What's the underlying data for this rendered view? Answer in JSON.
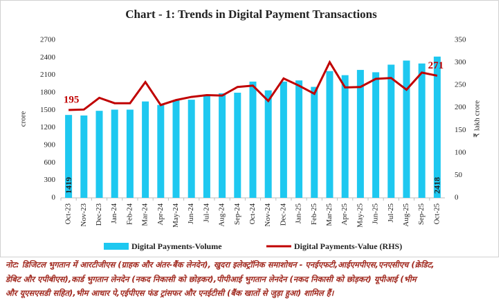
{
  "chart_data": {
    "type": "bar",
    "title": "Chart - 1: Trends in Digital Payment Transactions",
    "y_label": "crore",
    "y2_label": "₹ lakh crore",
    "categories": [
      "Oct-23",
      "Nov-23",
      "Dec-23",
      "Jan-24",
      "Feb-24",
      "Mar-24",
      "Apr-24",
      "May-24",
      "Jun-24",
      "Jul-24",
      "Aug-24",
      "Sep-24",
      "Oct-24",
      "Nov-24",
      "Dec-24",
      "Jan-25",
      "Feb-25",
      "Mar-25",
      "Apr-25",
      "May-25",
      "Jun-25",
      "Jul-25",
      "Aug-25",
      "Sep-25",
      "Oct-25"
    ],
    "series": [
      {
        "name": "Digital Payments-Volume",
        "type": "bar",
        "color": "#1ec8f0",
        "values": [
          1419,
          1410,
          1490,
          1510,
          1510,
          1650,
          1590,
          1670,
          1680,
          1770,
          1790,
          1800,
          1990,
          1840,
          1990,
          2010,
          1900,
          2170,
          2100,
          2190,
          2150,
          2280,
          2350,
          2300,
          2418
        ]
      },
      {
        "name": "Digital Payments-Value (RHS)",
        "type": "line",
        "axis": "y2",
        "color": "#c00000",
        "values": [
          195,
          196,
          222,
          210,
          210,
          257,
          206,
          217,
          224,
          228,
          227,
          246,
          249,
          215,
          265,
          249,
          231,
          301,
          245,
          246,
          264,
          266,
          240,
          278,
          271
        ]
      }
    ],
    "ylim": [
      0,
      2700
    ],
    "yticks": [
      0,
      300,
      600,
      900,
      1200,
      1500,
      1800,
      2100,
      2400,
      2700
    ],
    "y2lim": [
      0,
      350
    ],
    "y2ticks": [
      0,
      50,
      100,
      150,
      200,
      250,
      300,
      350
    ],
    "grid": false,
    "note": [
      "नोट: डिजिटल भुगतान में आरटीजीएस (ग्राहक और अंतर-बैंक लेनदेन), खुदरा इलेक्ट्रॉनिक समाशोधन - एनईएफटी,आईएमपीएस,एनएसीएच (क्रेडिट,",
      "डेबिट और एपीबीएस),कार्ड भुगतान लेनदेन (नकद निकासी को छोड़कर),पीपीआई भुगतान लेनदेन (नकद निकासी को छोड़कर) यूपीआई (भीम",
      "और यूएसएसडी सहित),भीम आधार पे,एईपीएस फंड ट्रांसफर और एनईटीसी (बैंक खातों से जुड़ा हुआ) शामिल हैं।"
    ]
  }
}
